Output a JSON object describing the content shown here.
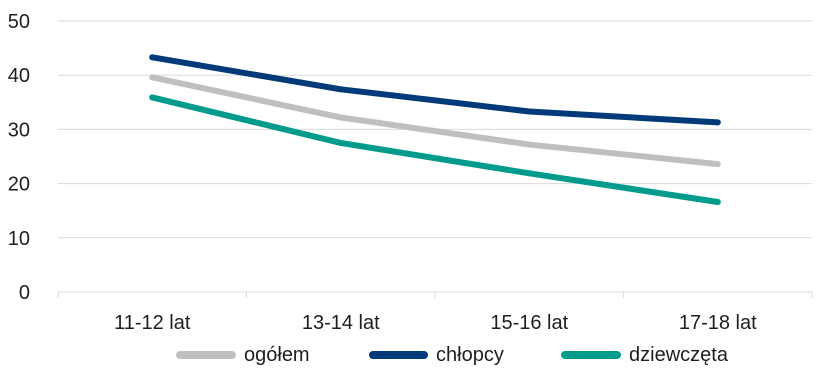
{
  "chart_data": {
    "type": "line",
    "title": "",
    "xlabel": "",
    "ylabel": "",
    "categories": [
      "11-12 lat",
      "13-14 lat",
      "15-16 lat",
      "17-18 lat"
    ],
    "ylim": [
      0,
      50
    ],
    "yticks": [
      0,
      10,
      20,
      30,
      40,
      50
    ],
    "grid": true,
    "legend_position": "bottom",
    "series": [
      {
        "name": "ogółem",
        "color": "#BFBFBF",
        "values": [
          39.6,
          32.2,
          27.2,
          23.6
        ]
      },
      {
        "name": "chłopcy",
        "color": "#003A78",
        "values": [
          43.3,
          37.4,
          33.3,
          31.3
        ]
      },
      {
        "name": "dziewczęta",
        "color": "#009B8D",
        "values": [
          35.9,
          27.5,
          21.9,
          16.6
        ]
      }
    ]
  }
}
